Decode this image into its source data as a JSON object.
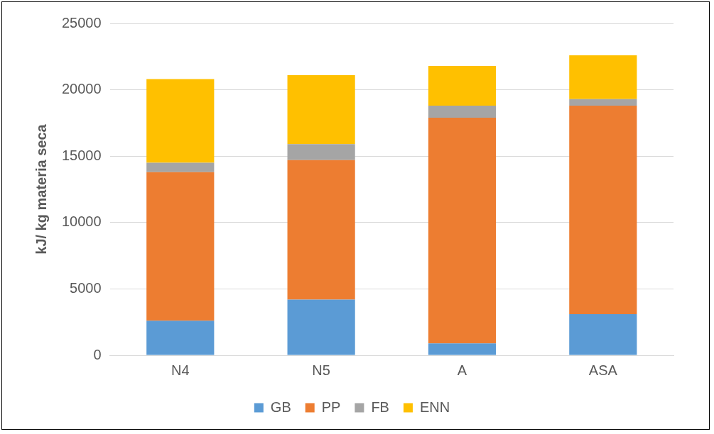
{
  "chart_data": {
    "type": "bar",
    "stacked": true,
    "ylabel": "kJ/ kg materia seca",
    "categories": [
      "N4",
      "N5",
      "A",
      "ASA"
    ],
    "series": [
      {
        "name": "GB",
        "color": "#5b9bd5",
        "values": [
          2600,
          4200,
          900,
          3100
        ]
      },
      {
        "name": "PP",
        "color": "#ed7d31",
        "values": [
          11200,
          10500,
          17000,
          15700
        ]
      },
      {
        "name": "FB",
        "color": "#a5a5a5",
        "values": [
          700,
          1200,
          900,
          500
        ]
      },
      {
        "name": "ENN",
        "color": "#ffc000",
        "values": [
          6300,
          5200,
          3000,
          3300
        ]
      }
    ],
    "ylim": [
      0,
      25000
    ],
    "yticks": [
      0,
      5000,
      10000,
      15000,
      20000,
      25000
    ],
    "grid": "y",
    "legend": "bottom"
  }
}
